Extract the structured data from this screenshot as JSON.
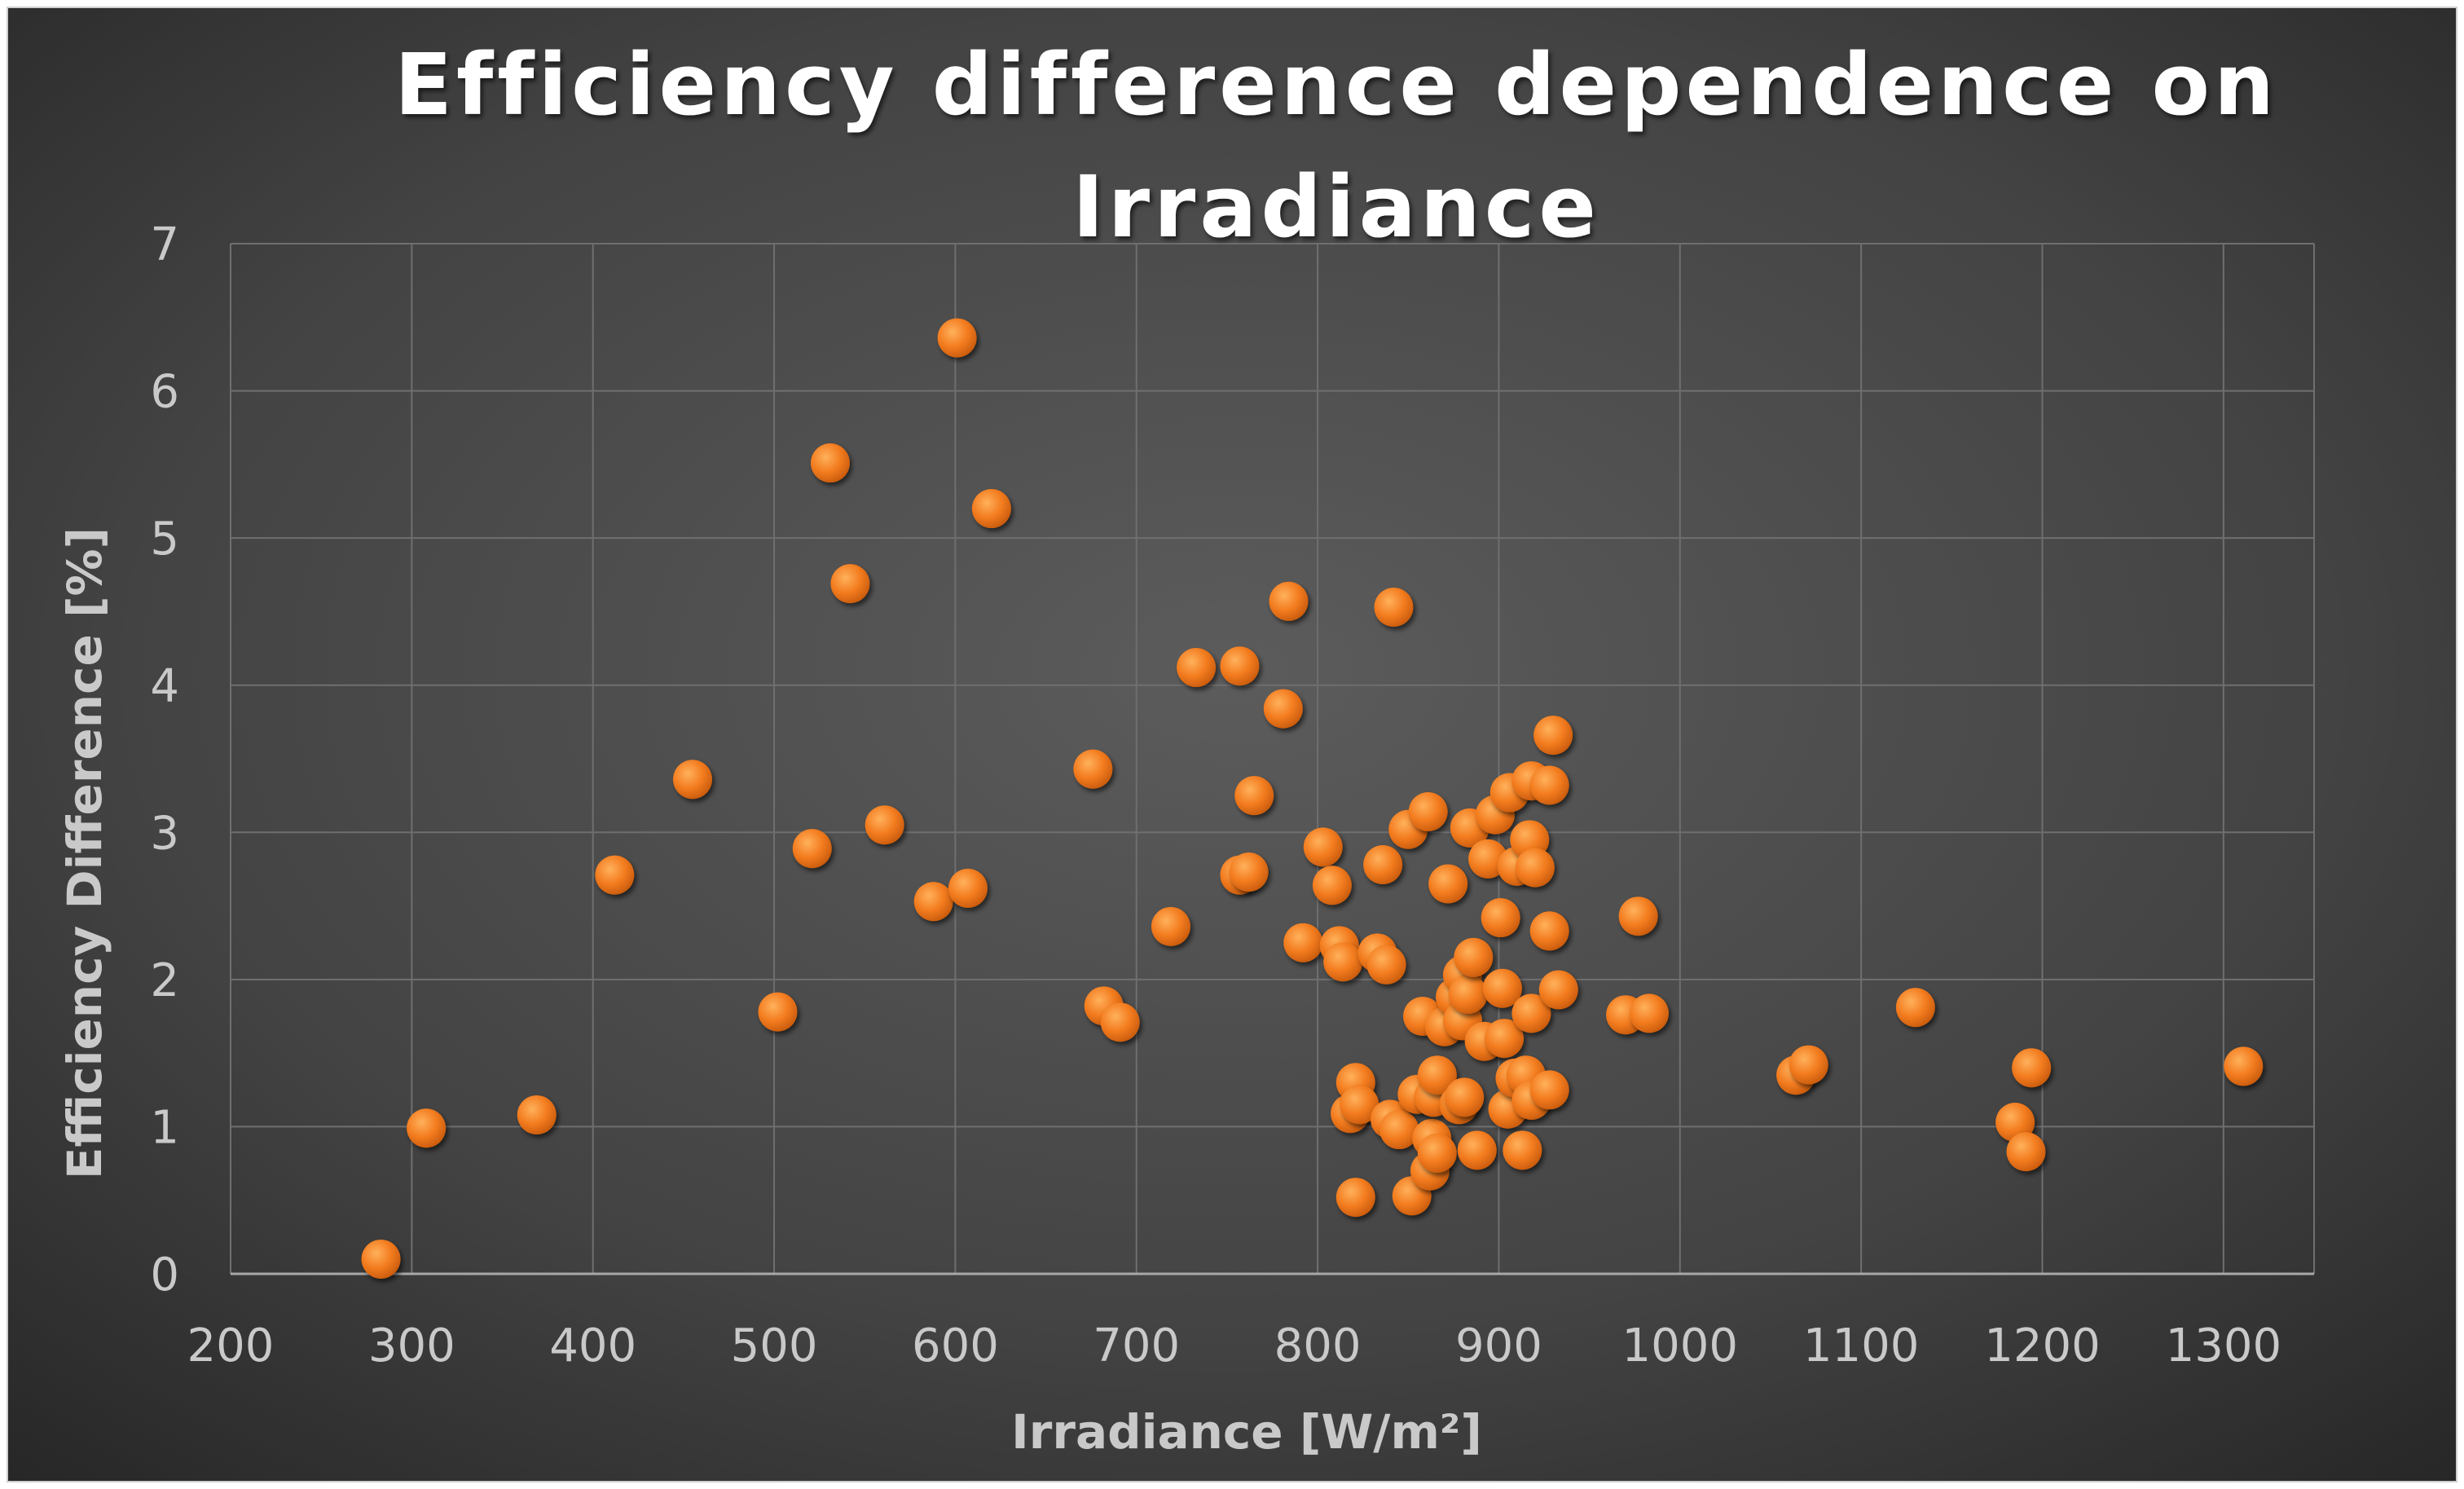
{
  "chart_data": {
    "type": "scatter",
    "title_lines": [
      "Efficiency difference dependence on",
      "Irradiance"
    ],
    "xlabel": "Irradiance [W/m²]",
    "ylabel": "Efficiency Difference [%]",
    "xlim": [
      200,
      1350
    ],
    "ylim": [
      0,
      7
    ],
    "xticks": [
      200,
      300,
      400,
      500,
      600,
      700,
      800,
      900,
      1000,
      1100,
      1200,
      1300
    ],
    "yticks": [
      0,
      1,
      2,
      3,
      4,
      5,
      6,
      7
    ],
    "grid": true,
    "legend": "none",
    "series": [
      {
        "name": "Efficiency Difference",
        "color": "#f07b20",
        "points": [
          [
            283,
            0.1
          ],
          [
            308,
            0.99
          ],
          [
            369,
            1.08
          ],
          [
            412,
            2.71
          ],
          [
            455,
            3.36
          ],
          [
            502,
            1.78
          ],
          [
            521,
            2.89
          ],
          [
            531,
            5.51
          ],
          [
            542,
            4.69
          ],
          [
            561,
            3.05
          ],
          [
            588,
            2.53
          ],
          [
            601,
            6.36
          ],
          [
            607,
            2.62
          ],
          [
            620,
            5.2
          ],
          [
            676,
            3.43
          ],
          [
            682,
            1.82
          ],
          [
            691,
            1.71
          ],
          [
            719,
            2.36
          ],
          [
            733,
            4.12
          ],
          [
            757,
            4.13
          ],
          [
            757,
            2.71
          ],
          [
            762,
            2.73
          ],
          [
            765,
            3.25
          ],
          [
            781,
            3.84
          ],
          [
            784,
            4.57
          ],
          [
            792,
            2.25
          ],
          [
            803,
            2.9
          ],
          [
            808,
            2.64
          ],
          [
            812,
            2.23
          ],
          [
            814,
            2.12
          ],
          [
            818,
            1.09
          ],
          [
            821,
            0.52
          ],
          [
            821,
            1.3
          ],
          [
            823,
            1.15
          ],
          [
            833,
            2.18
          ],
          [
            836,
            2.78
          ],
          [
            838,
            2.1
          ],
          [
            840,
            1.05
          ],
          [
            842,
            4.53
          ],
          [
            845,
            0.98
          ],
          [
            850,
            3.02
          ],
          [
            852,
            0.53
          ],
          [
            855,
            1.22
          ],
          [
            858,
            1.75
          ],
          [
            861,
            3.14
          ],
          [
            862,
            0.7
          ],
          [
            863,
            0.92
          ],
          [
            864,
            1.2
          ],
          [
            866,
            1.35
          ],
          [
            866,
            0.82
          ],
          [
            870,
            1.68
          ],
          [
            872,
            2.65
          ],
          [
            876,
            1.88
          ],
          [
            878,
            1.15
          ],
          [
            880,
            1.72
          ],
          [
            880,
            2.03
          ],
          [
            881,
            1.2
          ],
          [
            883,
            1.9
          ],
          [
            884,
            3.03
          ],
          [
            886,
            2.15
          ],
          [
            888,
            0.84
          ],
          [
            892,
            1.58
          ],
          [
            894,
            2.82
          ],
          [
            898,
            3.12
          ],
          [
            901,
            2.42
          ],
          [
            902,
            1.94
          ],
          [
            903,
            1.6
          ],
          [
            905,
            1.12
          ],
          [
            906,
            3.27
          ],
          [
            909,
            1.33
          ],
          [
            910,
            2.77
          ],
          [
            913,
            0.84
          ],
          [
            915,
            1.35
          ],
          [
            917,
            2.95
          ],
          [
            918,
            1.77
          ],
          [
            918,
            1.18
          ],
          [
            918,
            3.35
          ],
          [
            920,
            2.76
          ],
          [
            928,
            3.32
          ],
          [
            928,
            2.33
          ],
          [
            928,
            1.25
          ],
          [
            930,
            3.66
          ],
          [
            933,
            1.93
          ],
          [
            970,
            1.76
          ],
          [
            977,
            2.43
          ],
          [
            983,
            1.77
          ],
          [
            1064,
            1.35
          ],
          [
            1071,
            1.42
          ],
          [
            1130,
            1.81
          ],
          [
            1185,
            1.03
          ],
          [
            1191,
            0.83
          ],
          [
            1194,
            1.4
          ],
          [
            1311,
            1.41
          ]
        ]
      }
    ]
  }
}
